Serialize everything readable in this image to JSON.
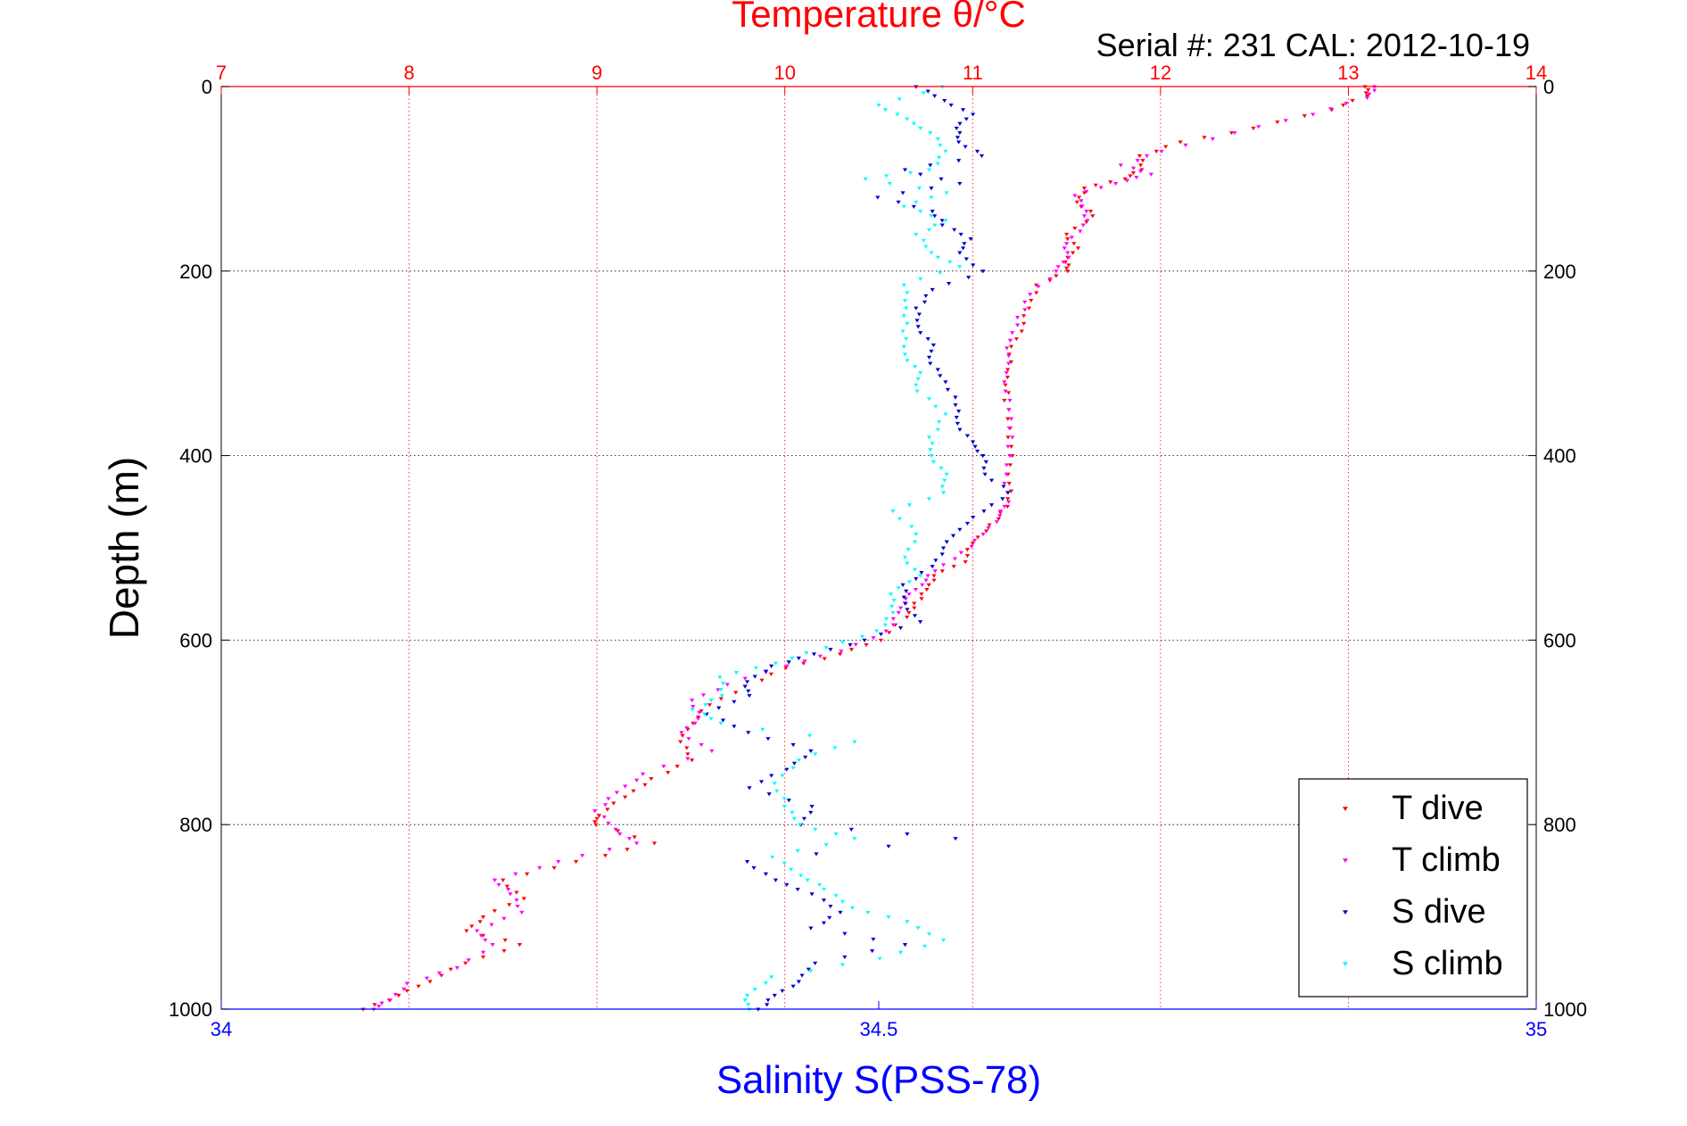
{
  "chart_data": {
    "type": "scatter",
    "title": "Temperature θ/°C",
    "subtitle": "Serial #: 231  CAL: 2012-10-19",
    "ylabel": "Depth (m)",
    "xlabel_bottom": "Salinity S(PSS-78)",
    "y_range": [
      0,
      1000
    ],
    "y_reversed": true,
    "y_ticks": [
      "0",
      "200",
      "400",
      "600",
      "800",
      "1000"
    ],
    "x_top_range": [
      7,
      14
    ],
    "x_top_ticks": [
      "7",
      "8",
      "9",
      "10",
      "11",
      "12",
      "13",
      "14"
    ],
    "x_bottom_range": [
      34,
      35
    ],
    "x_bottom_ticks": [
      "34",
      "34.5",
      "35"
    ],
    "x_bottom_tick_values": [
      34,
      34.5,
      35
    ],
    "grid": true,
    "legend_position": "bottom-right",
    "colors": {
      "temperature_axis": "#ff0000",
      "salinity_axis": "#0000ff",
      "t_dive": "#ff0000",
      "t_climb": "#ff00ff",
      "s_dive": "#0000cc",
      "s_climb": "#00ffff"
    },
    "series": [
      {
        "name": "T dive",
        "axis": "top",
        "color": "#ff0000",
        "points": [
          [
            13.1,
            0
          ],
          [
            13.1,
            10
          ],
          [
            12.9,
            25
          ],
          [
            12.5,
            45
          ],
          [
            12.1,
            60
          ],
          [
            11.9,
            75
          ],
          [
            11.9,
            90
          ],
          [
            11.8,
            100
          ],
          [
            11.6,
            110
          ],
          [
            11.55,
            125
          ],
          [
            11.65,
            140
          ],
          [
            11.5,
            160
          ],
          [
            11.55,
            175
          ],
          [
            11.5,
            190
          ],
          [
            11.5,
            200
          ],
          [
            11.35,
            215
          ],
          [
            11.3,
            240
          ],
          [
            11.25,
            265
          ],
          [
            11.2,
            290
          ],
          [
            11.18,
            315
          ],
          [
            11.18,
            340
          ],
          [
            11.2,
            370
          ],
          [
            11.2,
            400
          ],
          [
            11.2,
            430
          ],
          [
            11.18,
            455
          ],
          [
            11.1,
            475
          ],
          [
            11.0,
            495
          ],
          [
            10.95,
            515
          ],
          [
            10.8,
            530
          ],
          [
            10.75,
            545
          ],
          [
            10.7,
            560
          ],
          [
            10.65,
            575
          ],
          [
            10.5,
            600
          ],
          [
            10.3,
            615
          ],
          [
            10.0,
            630
          ],
          [
            9.8,
            650
          ],
          [
            9.6,
            670
          ],
          [
            9.5,
            690
          ],
          [
            9.45,
            710
          ],
          [
            9.5,
            730
          ],
          [
            9.3,
            750
          ],
          [
            9.15,
            770
          ],
          [
            9.0,
            790
          ],
          [
            9.0,
            800
          ],
          [
            9.3,
            820
          ],
          [
            8.9,
            840
          ],
          [
            8.5,
            860
          ],
          [
            8.6,
            880
          ],
          [
            8.4,
            900
          ],
          [
            8.3,
            915
          ],
          [
            8.6,
            930
          ],
          [
            8.3,
            950
          ],
          [
            8.1,
            970
          ],
          [
            7.95,
            985
          ],
          [
            7.75,
            1000
          ]
        ]
      },
      {
        "name": "T climb",
        "axis": "top",
        "color": "#ff00ff",
        "points": [
          [
            13.15,
            0
          ],
          [
            13.1,
            12
          ],
          [
            12.8,
            30
          ],
          [
            12.4,
            50
          ],
          [
            12.0,
            70
          ],
          [
            11.8,
            85
          ],
          [
            11.95,
            95
          ],
          [
            11.75,
            105
          ],
          [
            11.55,
            118
          ],
          [
            11.6,
            135
          ],
          [
            11.6,
            150
          ],
          [
            11.5,
            170
          ],
          [
            11.5,
            185
          ],
          [
            11.45,
            200
          ],
          [
            11.3,
            225
          ],
          [
            11.25,
            250
          ],
          [
            11.2,
            275
          ],
          [
            11.18,
            300
          ],
          [
            11.18,
            330
          ],
          [
            11.2,
            360
          ],
          [
            11.2,
            390
          ],
          [
            11.18,
            420
          ],
          [
            11.18,
            450
          ],
          [
            11.15,
            465
          ],
          [
            11.05,
            485
          ],
          [
            10.95,
            505
          ],
          [
            10.8,
            525
          ],
          [
            10.72,
            540
          ],
          [
            10.65,
            555
          ],
          [
            10.6,
            570
          ],
          [
            10.55,
            590
          ],
          [
            10.3,
            612
          ],
          [
            10.0,
            628
          ],
          [
            9.7,
            648
          ],
          [
            9.5,
            665
          ],
          [
            9.55,
            685
          ],
          [
            9.45,
            700
          ],
          [
            9.6,
            720
          ],
          [
            9.25,
            745
          ],
          [
            9.1,
            765
          ],
          [
            9.0,
            785
          ],
          [
            9.1,
            805
          ],
          [
            9.2,
            820
          ],
          [
            8.8,
            840
          ],
          [
            8.45,
            860
          ],
          [
            8.55,
            875
          ],
          [
            8.6,
            895
          ],
          [
            8.35,
            915
          ],
          [
            8.45,
            930
          ],
          [
            8.25,
            955
          ],
          [
            8.0,
            972
          ],
          [
            7.9,
            990
          ],
          [
            7.8,
            1000
          ]
        ]
      },
      {
        "name": "S dive",
        "axis": "bottom",
        "color": "#0000cc",
        "points": [
          [
            34.53,
            0
          ],
          [
            34.55,
            15
          ],
          [
            34.57,
            30
          ],
          [
            34.56,
            45
          ],
          [
            34.56,
            60
          ],
          [
            34.58,
            75
          ],
          [
            34.52,
            90
          ],
          [
            34.56,
            105
          ],
          [
            34.5,
            120
          ],
          [
            34.54,
            135
          ],
          [
            34.55,
            150
          ],
          [
            34.57,
            165
          ],
          [
            34.56,
            180
          ],
          [
            34.58,
            200
          ],
          [
            34.54,
            220
          ],
          [
            34.53,
            240
          ],
          [
            34.53,
            260
          ],
          [
            34.54,
            280
          ],
          [
            34.54,
            300
          ],
          [
            34.55,
            320
          ],
          [
            34.56,
            345
          ],
          [
            34.56,
            365
          ],
          [
            34.57,
            385
          ],
          [
            34.58,
            400
          ],
          [
            34.58,
            420
          ],
          [
            34.6,
            440
          ],
          [
            34.58,
            460
          ],
          [
            34.56,
            480
          ],
          [
            34.55,
            500
          ],
          [
            34.54,
            520
          ],
          [
            34.52,
            540
          ],
          [
            34.52,
            560
          ],
          [
            34.53,
            580
          ],
          [
            34.49,
            600
          ],
          [
            34.45,
            615
          ],
          [
            34.42,
            628
          ],
          [
            34.4,
            645
          ],
          [
            34.4,
            660
          ],
          [
            34.37,
            680
          ],
          [
            34.4,
            700
          ],
          [
            34.45,
            720
          ],
          [
            34.43,
            740
          ],
          [
            34.4,
            760
          ],
          [
            34.45,
            780
          ],
          [
            34.44,
            800
          ],
          [
            34.56,
            815
          ],
          [
            34.4,
            840
          ],
          [
            34.42,
            860
          ],
          [
            34.45,
            875
          ],
          [
            34.47,
            895
          ],
          [
            34.45,
            912
          ],
          [
            34.52,
            930
          ],
          [
            34.45,
            950
          ],
          [
            34.44,
            970
          ],
          [
            34.42,
            985
          ],
          [
            34.41,
            1000
          ]
        ]
      },
      {
        "name": "S climb",
        "axis": "bottom",
        "color": "#00ffff",
        "points": [
          [
            34.55,
            0
          ],
          [
            34.5,
            20
          ],
          [
            34.52,
            35
          ],
          [
            34.54,
            50
          ],
          [
            34.55,
            70
          ],
          [
            34.54,
            90
          ],
          [
            34.49,
            100
          ],
          [
            34.55,
            115
          ],
          [
            34.52,
            130
          ],
          [
            34.55,
            145
          ],
          [
            34.53,
            160
          ],
          [
            34.54,
            180
          ],
          [
            34.56,
            195
          ],
          [
            34.52,
            215
          ],
          [
            34.52,
            240
          ],
          [
            34.52,
            265
          ],
          [
            34.52,
            290
          ],
          [
            34.53,
            310
          ],
          [
            34.53,
            330
          ],
          [
            34.55,
            355
          ],
          [
            34.54,
            380
          ],
          [
            34.54,
            400
          ],
          [
            34.55,
            420
          ],
          [
            34.55,
            440
          ],
          [
            34.51,
            460
          ],
          [
            34.53,
            485
          ],
          [
            34.52,
            510
          ],
          [
            34.53,
            530
          ],
          [
            34.51,
            550
          ],
          [
            34.51,
            570
          ],
          [
            34.5,
            590
          ],
          [
            34.46,
            608
          ],
          [
            34.42,
            625
          ],
          [
            34.38,
            640
          ],
          [
            34.38,
            660
          ],
          [
            34.36,
            675
          ],
          [
            34.38,
            690
          ],
          [
            34.48,
            710
          ],
          [
            34.44,
            730
          ],
          [
            34.42,
            755
          ],
          [
            34.43,
            780
          ],
          [
            34.44,
            800
          ],
          [
            34.48,
            815
          ],
          [
            34.42,
            835
          ],
          [
            34.44,
            855
          ],
          [
            34.46,
            870
          ],
          [
            34.48,
            890
          ],
          [
            34.52,
            905
          ],
          [
            34.55,
            925
          ],
          [
            34.5,
            945
          ],
          [
            34.42,
            965
          ],
          [
            34.4,
            985
          ],
          [
            34.4,
            1000
          ]
        ]
      }
    ]
  }
}
